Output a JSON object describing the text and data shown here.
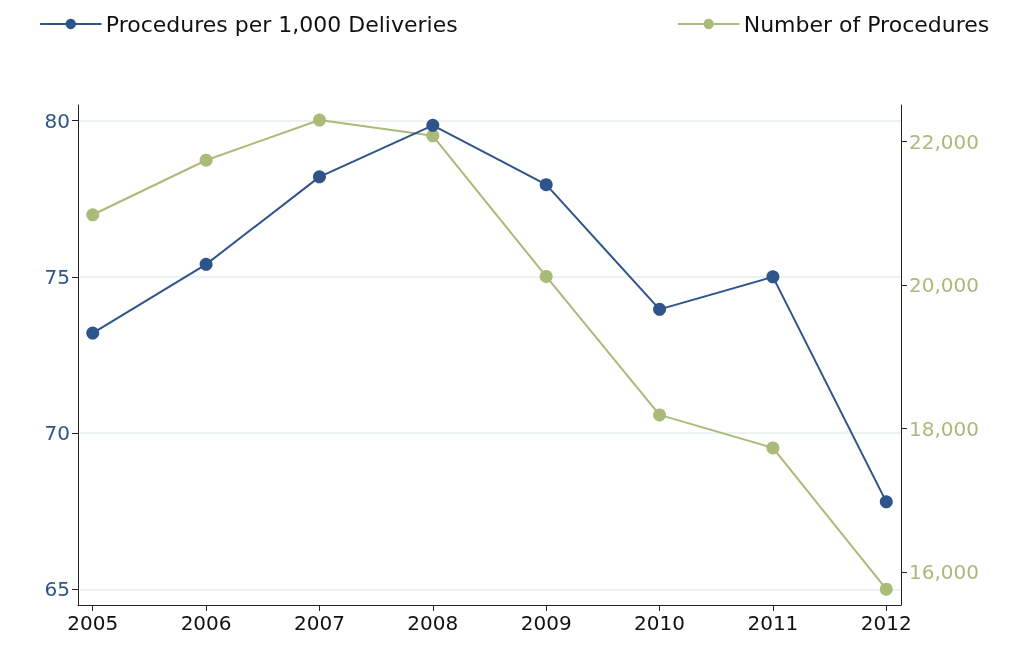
{
  "chart_data": {
    "type": "line",
    "x": [
      2005,
      2006,
      2007,
      2008,
      2009,
      2010,
      2011,
      2012
    ],
    "xlim": [
      2004.87,
      2012.13
    ],
    "xticks": [
      2005,
      2006,
      2007,
      2008,
      2009,
      2010,
      2011,
      2012
    ],
    "ylim": [
      64.5,
      80.5
    ],
    "yticks": [
      65,
      70,
      75,
      80
    ],
    "y2lim": [
      15540,
      22510
    ],
    "y2ticks": [
      {
        "value": 16000,
        "label": "16,000"
      },
      {
        "value": 18000,
        "label": "18,000"
      },
      {
        "value": 20000,
        "label": "20,000"
      },
      {
        "value": 22000,
        "label": "22,000"
      }
    ],
    "series": [
      {
        "name": "Procedures per 1,000 Deliveries",
        "color": "#2e548a",
        "values": [
          73.2,
          75.4,
          78.2,
          79.85,
          77.95,
          73.96,
          75.0,
          67.8
        ]
      },
      {
        "name": "Number of Procedures",
        "color": "#a8bb79",
        "axis": "y2",
        "values": [
          20980,
          21740,
          22300,
          22080,
          20120,
          18190,
          17730,
          15760
        ]
      }
    ],
    "grid": "y",
    "legend": "top",
    "marker": "circle",
    "line_style": "solid"
  }
}
